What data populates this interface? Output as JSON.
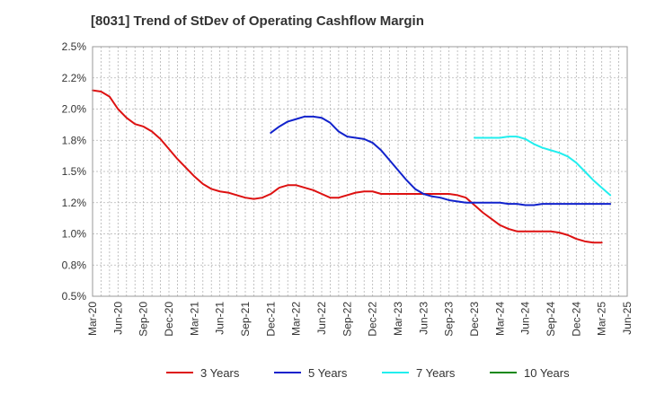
{
  "chart_data": {
    "type": "line",
    "title": "[8031]  Trend of StDev of Operating Cashflow Margin",
    "xlabel": "",
    "ylabel": "",
    "ylim": [
      0.5,
      2.5
    ],
    "y_ticks": [
      "0.5%",
      "0.8%",
      "1.0%",
      "1.2%",
      "1.5%",
      "1.8%",
      "2.0%",
      "2.2%",
      "2.5%"
    ],
    "x_ticks": [
      "Mar-20",
      "Jun-20",
      "Sep-20",
      "Dec-20",
      "Mar-21",
      "Jun-21",
      "Sep-21",
      "Dec-21",
      "Mar-22",
      "Jun-22",
      "Sep-22",
      "Dec-22",
      "Mar-23",
      "Jun-23",
      "Sep-23",
      "Dec-23",
      "Mar-24",
      "Jun-24",
      "Sep-24",
      "Dec-24",
      "Mar-25",
      "Jun-25"
    ],
    "grid": true,
    "legend_position": "bottom",
    "series": [
      {
        "name": "3 Years",
        "color": "#dd1111",
        "start": "Mar-20",
        "values": [
          2.15,
          2.14,
          2.1,
          2.0,
          1.93,
          1.88,
          1.86,
          1.82,
          1.76,
          1.68,
          1.6,
          1.53,
          1.46,
          1.4,
          1.36,
          1.34,
          1.33,
          1.31,
          1.29,
          1.28,
          1.29,
          1.32,
          1.37,
          1.39,
          1.39,
          1.37,
          1.35,
          1.32,
          1.29,
          1.29,
          1.31,
          1.33,
          1.34,
          1.34,
          1.32,
          1.32,
          1.32,
          1.32,
          1.32,
          1.32,
          1.32,
          1.32,
          1.32,
          1.31,
          1.29,
          1.23,
          1.17,
          1.12,
          1.07,
          1.04,
          1.02,
          1.02,
          1.02,
          1.02,
          1.02,
          1.01,
          0.99,
          0.96,
          0.94,
          0.93,
          0.93
        ]
      },
      {
        "name": "5 Years",
        "color": "#1122cc",
        "start": "Dec-21",
        "values": [
          1.81,
          1.86,
          1.9,
          1.92,
          1.94,
          1.94,
          1.93,
          1.89,
          1.82,
          1.78,
          1.77,
          1.76,
          1.73,
          1.67,
          1.59,
          1.51,
          1.43,
          1.36,
          1.32,
          1.3,
          1.29,
          1.27,
          1.26,
          1.25,
          1.25,
          1.25,
          1.25,
          1.25,
          1.24,
          1.24,
          1.23,
          1.23,
          1.24,
          1.24,
          1.24,
          1.24,
          1.24,
          1.24,
          1.24,
          1.24,
          1.24
        ]
      },
      {
        "name": "7 Years",
        "color": "#22eeee",
        "start": "Dec-23",
        "values": [
          1.77,
          1.77,
          1.77,
          1.77,
          1.78,
          1.78,
          1.76,
          1.72,
          1.69,
          1.67,
          1.65,
          1.62,
          1.57,
          1.5,
          1.43,
          1.37,
          1.31
        ]
      },
      {
        "name": "10 Years",
        "color": "#118811",
        "start": "",
        "values": []
      }
    ]
  }
}
